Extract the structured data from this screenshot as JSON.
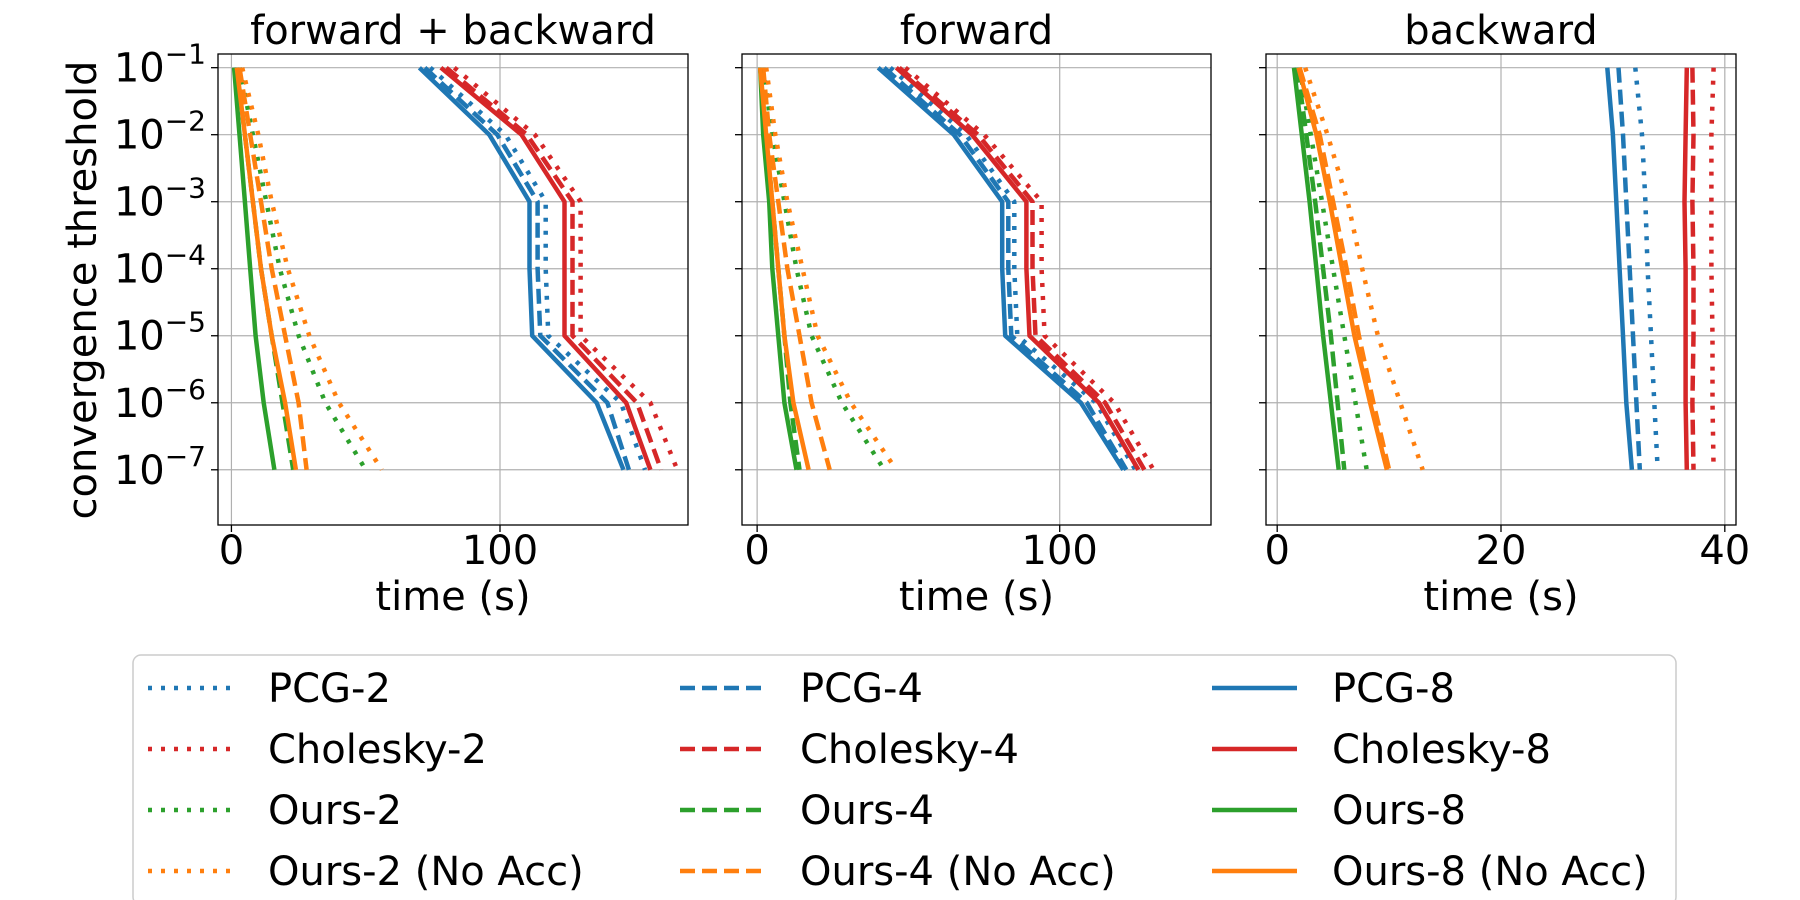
{
  "figure": {
    "ylabel": "convergence threshold",
    "y_ticks": [
      "10^-1",
      "10^-2",
      "10^-3",
      "10^-4",
      "10^-5",
      "10^-6",
      "10^-7"
    ],
    "y_scale": "log",
    "grid": true,
    "legend_position": "bottom",
    "legend_columns": 3
  },
  "series_styles": [
    {
      "name": "PCG-2",
      "color": "#1f77b4",
      "dash": "dotted"
    },
    {
      "name": "Cholesky-2",
      "color": "#d62728",
      "dash": "dotted"
    },
    {
      "name": "Ours-2",
      "color": "#2ca02c",
      "dash": "dotted"
    },
    {
      "name": "Ours-2 (No Acc)",
      "color": "#ff7f0e",
      "dash": "dotted"
    },
    {
      "name": "PCG-4",
      "color": "#1f77b4",
      "dash": "dashed"
    },
    {
      "name": "Cholesky-4",
      "color": "#d62728",
      "dash": "dashed"
    },
    {
      "name": "Ours-4",
      "color": "#2ca02c",
      "dash": "dashed"
    },
    {
      "name": "Ours-4 (No Acc)",
      "color": "#ff7f0e",
      "dash": "dashed"
    },
    {
      "name": "PCG-8",
      "color": "#1f77b4",
      "dash": "solid"
    },
    {
      "name": "Cholesky-8",
      "color": "#d62728",
      "dash": "solid"
    },
    {
      "name": "Ours-8",
      "color": "#2ca02c",
      "dash": "solid"
    },
    {
      "name": "Ours-8 (No Acc)",
      "color": "#ff7f0e",
      "dash": "solid"
    }
  ],
  "chart_data": [
    {
      "type": "line",
      "title": "forward + backward",
      "xlabel": "time (s)",
      "ylabel": "convergence threshold",
      "xlim": [
        -5,
        170
      ],
      "ylim": [
        1.5e-08,
        0.16
      ],
      "x_ticks": [
        0,
        100
      ],
      "y": [
        0.1,
        0.01,
        0.001,
        0.0001,
        1e-05,
        1e-06,
        1e-07
      ],
      "series": [
        {
          "name": "PCG-2",
          "x": [
            74,
            102,
            117,
            117,
            118,
            145,
            154
          ]
        },
        {
          "name": "Cholesky-2",
          "x": [
            83,
            113,
            130,
            130,
            130,
            156,
            166
          ]
        },
        {
          "name": "Ours-2",
          "x": [
            3,
            8,
            13,
            18,
            25,
            35,
            50
          ]
        },
        {
          "name": "Ours-2 (No Acc)",
          "x": [
            4,
            10,
            15,
            21,
            29,
            40,
            56
          ]
        },
        {
          "name": "PCG-4",
          "x": [
            72,
            99,
            114,
            114,
            115,
            140,
            148
          ]
        },
        {
          "name": "Cholesky-4",
          "x": [
            80,
            110,
            127,
            127,
            127,
            151,
            160
          ]
        },
        {
          "name": "Ours-4",
          "x": [
            2,
            5,
            8,
            11,
            15,
            19,
            23
          ]
        },
        {
          "name": "Ours-4 (No Acc)",
          "x": [
            3,
            7,
            11,
            15,
            20,
            25,
            28
          ]
        },
        {
          "name": "PCG-8",
          "x": [
            70,
            96,
            111,
            111,
            112,
            136,
            146
          ]
        },
        {
          "name": "Cholesky-8",
          "x": [
            78,
            108,
            124,
            124,
            124,
            147,
            156
          ]
        },
        {
          "name": "Ours-8",
          "x": [
            1,
            3,
            5,
            7,
            9,
            12,
            16
          ]
        },
        {
          "name": "Ours-8 (No Acc)",
          "x": [
            2,
            5,
            8,
            11,
            15,
            20,
            24
          ]
        }
      ]
    },
    {
      "type": "line",
      "title": "forward",
      "xlabel": "time (s)",
      "ylabel": "",
      "xlim": [
        -5,
        150
      ],
      "ylim": [
        1.5e-08,
        0.16
      ],
      "x_ticks": [
        0,
        100
      ],
      "y": [
        0.1,
        0.01,
        0.001,
        0.0001,
        1e-05,
        1e-06,
        1e-07
      ],
      "series": [
        {
          "name": "PCG-2",
          "x": [
            44,
            69,
            85,
            85,
            86,
            112,
            125
          ]
        },
        {
          "name": "Cholesky-2",
          "x": [
            49,
            75,
            94,
            94,
            95,
            118,
            131
          ]
        },
        {
          "name": "Ours-2",
          "x": [
            2,
            5,
            9,
            13,
            18,
            28,
            42
          ]
        },
        {
          "name": "Ours-2 (No Acc)",
          "x": [
            3,
            6,
            10,
            15,
            20,
            31,
            46
          ]
        },
        {
          "name": "PCG-4",
          "x": [
            42,
            67,
            83,
            83,
            84,
            109,
            122
          ]
        },
        {
          "name": "Cholesky-4",
          "x": [
            47,
            73,
            91,
            91,
            92,
            115,
            128
          ]
        },
        {
          "name": "Ours-4",
          "x": [
            1,
            3,
            5,
            7,
            9,
            11,
            14
          ]
        },
        {
          "name": "Ours-4 (No Acc)",
          "x": [
            2,
            4,
            7,
            10,
            14,
            18,
            24
          ]
        },
        {
          "name": "PCG-8",
          "x": [
            40,
            65,
            81,
            81,
            82,
            107,
            121
          ]
        },
        {
          "name": "Cholesky-8",
          "x": [
            46,
            71,
            89,
            89,
            90,
            113,
            126
          ]
        },
        {
          "name": "Ours-8",
          "x": [
            1,
            2,
            4,
            5,
            7,
            9,
            13
          ]
        },
        {
          "name": "Ours-8 (No Acc)",
          "x": [
            1,
            3,
            5,
            7,
            9,
            12,
            17
          ]
        }
      ]
    },
    {
      "type": "line",
      "title": "backward",
      "xlabel": "time (s)",
      "ylabel": "",
      "xlim": [
        -1,
        41
      ],
      "ylim": [
        1.5e-08,
        0.16
      ],
      "x_ticks": [
        0,
        20,
        40
      ],
      "y": [
        0.1,
        0.01,
        0.001,
        0.0001,
        1e-05,
        1e-06,
        1e-07
      ],
      "series": [
        {
          "name": "PCG-2",
          "x": [
            32,
            32.6,
            32.9,
            33.1,
            33.4,
            33.7,
            34
          ]
        },
        {
          "name": "Cholesky-2",
          "x": [
            39,
            38.8,
            38.8,
            38.8,
            38.9,
            38.9,
            39
          ]
        },
        {
          "name": "Ours-2",
          "x": [
            2,
            3,
            4,
            5,
            6,
            7,
            8
          ]
        },
        {
          "name": "Ours-2 (No Acc)",
          "x": [
            2.5,
            4.5,
            6.3,
            7.6,
            9,
            11,
            13
          ]
        },
        {
          "name": "PCG-4",
          "x": [
            30.5,
            30.9,
            31.2,
            31.5,
            31.8,
            32.1,
            32.4
          ]
        },
        {
          "name": "Cholesky-4",
          "x": [
            37.1,
            37.2,
            37.1,
            37.2,
            37.2,
            37.1,
            37.2
          ]
        },
        {
          "name": "Ours-4",
          "x": [
            1.8,
            2.6,
            3.4,
            4.1,
            4.8,
            5.4,
            6
          ]
        },
        {
          "name": "Ours-4 (No Acc)",
          "x": [
            2,
            3.8,
            5,
            6.2,
            7.3,
            8.6,
            10
          ]
        },
        {
          "name": "PCG-8",
          "x": [
            29.5,
            30,
            30.3,
            30.6,
            30.9,
            31.2,
            31.7
          ]
        },
        {
          "name": "Cholesky-8",
          "x": [
            36.6,
            36.5,
            36.4,
            36.5,
            36.5,
            36.5,
            36.6
          ]
        },
        {
          "name": "Ours-8",
          "x": [
            1.5,
            2.2,
            2.9,
            3.5,
            4.1,
            4.8,
            5.5
          ]
        },
        {
          "name": "Ours-8 (No Acc)",
          "x": [
            1.9,
            3.5,
            4.7,
            5.8,
            6.9,
            8.3,
            9.8
          ]
        }
      ]
    }
  ]
}
